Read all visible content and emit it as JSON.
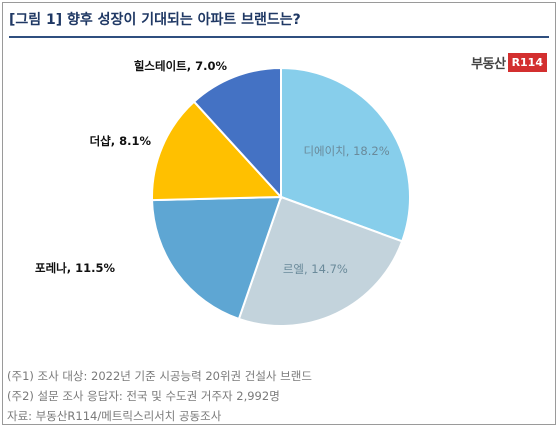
{
  "title": "[그림 1] 향후 성장이 기대되는 아파트 브랜드는?",
  "logo": {
    "text": "부동산",
    "badge": "R114"
  },
  "chart_data": {
    "type": "pie",
    "title": "[그림 1] 향후 성장이 기대되는 아파트 브랜드는?",
    "slices": [
      {
        "label": "디에이치",
        "value": 18.2,
        "display": "디에이치, 18.2%",
        "color": "#87ceeb",
        "label_pos": "inside"
      },
      {
        "label": "르엘",
        "value": 14.7,
        "display": "르엘, 14.7%",
        "color": "#c3d3dc",
        "label_pos": "inside"
      },
      {
        "label": "포레나",
        "value": 11.5,
        "display": "포레나, 11.5%",
        "color": "#5ea6d3",
        "label_pos": "outside"
      },
      {
        "label": "더샵",
        "value": 8.1,
        "display": "더샵, 8.1%",
        "color": "#ffc000",
        "label_pos": "outside"
      },
      {
        "label": "힐스테이트",
        "value": 7.0,
        "display": "힐스테이트, 7.0%",
        "color": "#4472c4",
        "label_pos": "outside"
      }
    ]
  },
  "notes": [
    "(주1) 조사 대상: 2022년 기준 시공능력 20위권 건설사 브랜드",
    "(주2) 설문 조사 응답자: 전국 및 수도권 거주자 2,992명",
    "자료: 부동산R114/메트릭스리서치 공동조사"
  ]
}
